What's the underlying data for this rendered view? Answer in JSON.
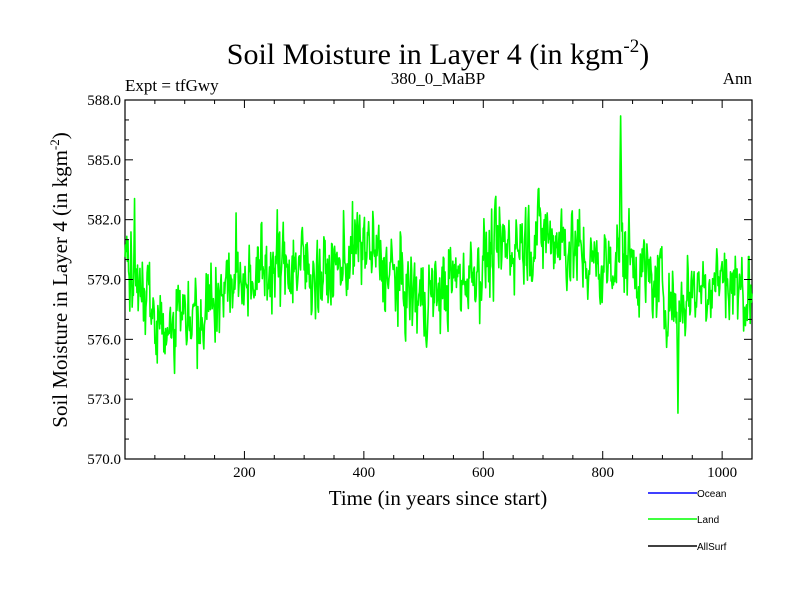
{
  "chart_data": {
    "type": "line",
    "title": "Soil Moisture in Layer 4 (in kgm",
    "title_superscript": "-2",
    "title_suffix": ")",
    "subtitle_left": "Expt = tfGwy",
    "subtitle_center": "380_0_MaBP",
    "subtitle_right": "Ann",
    "xlabel": "Time (in years since start)",
    "ylabel": "Soil Moisture in Layer 4 (in kgm",
    "ylabel_superscript": "-2",
    "ylabel_suffix": ")",
    "xlim": [
      0,
      1050
    ],
    "ylim": [
      570.0,
      588.0
    ],
    "xticks": [
      200,
      400,
      600,
      800,
      1000
    ],
    "xtick_labels": [
      "200",
      "400",
      "600",
      "800",
      "1000"
    ],
    "yticks": [
      570.0,
      573.0,
      576.0,
      579.0,
      582.0,
      585.0,
      588.0
    ],
    "ytick_labels": [
      "570.0",
      "573.0",
      "576.0",
      "579.0",
      "582.0",
      "585.0",
      "588.0"
    ],
    "legend": [
      {
        "name": "Ocean",
        "color": "#0000ff"
      },
      {
        "name": "Land",
        "color": "#00ff00"
      },
      {
        "name": "AllSurf",
        "color": "#000000"
      }
    ],
    "legend_placement": "bottom-right",
    "series": [
      {
        "name": "Land",
        "color": "#00ff00",
        "x": [
          0,
          25,
          50,
          75,
          100,
          125,
          150,
          175,
          200,
          225,
          250,
          275,
          300,
          325,
          350,
          375,
          400,
          425,
          450,
          475,
          500,
          525,
          550,
          575,
          600,
          625,
          650,
          675,
          700,
          725,
          750,
          775,
          800,
          825,
          850,
          875,
          900,
          925,
          950,
          975,
          1000,
          1025,
          1050
        ],
        "values": [
          580.8,
          578.6,
          577.4,
          576.8,
          577.5,
          577.6,
          578.1,
          578.8,
          579.2,
          579.4,
          579.6,
          579.8,
          579.7,
          579.2,
          579.4,
          580.2,
          580.8,
          579.9,
          579.1,
          578.3,
          578.0,
          578.4,
          578.9,
          579.3,
          579.9,
          580.4,
          580.8,
          581.1,
          581.3,
          581.1,
          580.6,
          579.9,
          579.4,
          580.6,
          580.0,
          579.0,
          578.5,
          577.6,
          578.6,
          578.9,
          579.2,
          578.6,
          578.3
        ],
        "envelope_min": 572.3,
        "envelope_max": 587.2,
        "variability_sd": 1.45
      }
    ]
  }
}
